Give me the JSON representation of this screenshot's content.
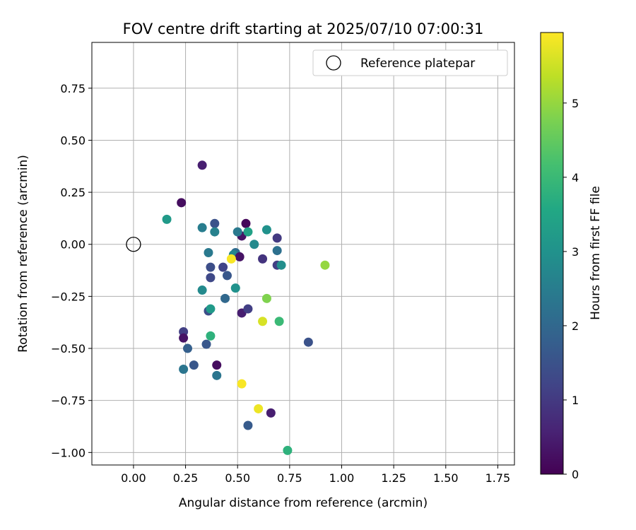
{
  "chart_data": {
    "type": "scatter",
    "title": "FOV centre drift starting at 2025/07/10 07:00:31",
    "xlabel": "Angular distance from reference (arcmin)",
    "ylabel": "Rotation from reference (arcmin)",
    "xlim": [
      -0.2,
      1.83
    ],
    "ylim": [
      -1.06,
      0.97
    ],
    "xticks": [
      0.0,
      0.25,
      0.5,
      0.75,
      1.0,
      1.25,
      1.5,
      1.75
    ],
    "xtick_labels": [
      "0.00",
      "0.25",
      "0.50",
      "0.75",
      "1.00",
      "1.25",
      "1.50",
      "1.75"
    ],
    "yticks": [
      -1.0,
      -0.75,
      -0.5,
      -0.25,
      0.0,
      0.25,
      0.5,
      0.75
    ],
    "ytick_labels": [
      "−1.00",
      "−0.75",
      "−0.50",
      "−0.25",
      "0.00",
      "0.25",
      "0.50",
      "0.75"
    ],
    "grid": true,
    "legend": {
      "placement": "top-right",
      "entries": [
        "Reference platepar"
      ]
    },
    "colorbar": {
      "label": "Hours from first FF file",
      "range": [
        0,
        5.95
      ],
      "colormap": "viridis",
      "ticks": [
        0,
        1,
        2,
        3,
        4,
        5
      ],
      "tick_labels": [
        "0",
        "1",
        "2",
        "3",
        "4",
        "5"
      ]
    },
    "reference_point": {
      "x": 0.0,
      "y": 0.0,
      "label": "Reference platepar"
    },
    "points": [
      {
        "x": 0.33,
        "y": 0.38,
        "h": 0.5
      },
      {
        "x": 0.23,
        "y": 0.2,
        "h": 0.2
      },
      {
        "x": 0.16,
        "y": 0.12,
        "h": 3.2
      },
      {
        "x": 0.33,
        "y": 0.08,
        "h": 2.5
      },
      {
        "x": 0.39,
        "y": 0.1,
        "h": 1.5
      },
      {
        "x": 0.39,
        "y": 0.06,
        "h": 2.6
      },
      {
        "x": 0.36,
        "y": -0.04,
        "h": 2.4
      },
      {
        "x": 0.54,
        "y": 0.1,
        "h": 0.1
      },
      {
        "x": 0.52,
        "y": 0.04,
        "h": 0.3
      },
      {
        "x": 0.5,
        "y": 0.06,
        "h": 2.4
      },
      {
        "x": 0.55,
        "y": 0.06,
        "h": 3.4
      },
      {
        "x": 0.64,
        "y": 0.07,
        "h": 3.0
      },
      {
        "x": 0.69,
        "y": 0.03,
        "h": 1.0
      },
      {
        "x": 0.58,
        "y": 0.0,
        "h": 2.8
      },
      {
        "x": 0.49,
        "y": -0.04,
        "h": 2.1
      },
      {
        "x": 0.48,
        "y": -0.05,
        "h": 2.7
      },
      {
        "x": 0.51,
        "y": -0.06,
        "h": 0.3
      },
      {
        "x": 0.47,
        "y": -0.07,
        "h": 5.9
      },
      {
        "x": 0.62,
        "y": -0.07,
        "h": 0.9
      },
      {
        "x": 0.69,
        "y": -0.03,
        "h": 2.2
      },
      {
        "x": 0.69,
        "y": -0.1,
        "h": 1.1
      },
      {
        "x": 0.71,
        "y": -0.1,
        "h": 2.9
      },
      {
        "x": 0.92,
        "y": -0.1,
        "h": 5.0
      },
      {
        "x": 0.37,
        "y": -0.11,
        "h": 1.4
      },
      {
        "x": 0.43,
        "y": -0.11,
        "h": 1.2
      },
      {
        "x": 0.37,
        "y": -0.16,
        "h": 1.3
      },
      {
        "x": 0.45,
        "y": -0.15,
        "h": 1.6
      },
      {
        "x": 0.33,
        "y": -0.22,
        "h": 2.8
      },
      {
        "x": 0.49,
        "y": -0.21,
        "h": 3.0
      },
      {
        "x": 0.44,
        "y": -0.26,
        "h": 2.0
      },
      {
        "x": 0.64,
        "y": -0.26,
        "h": 4.8
      },
      {
        "x": 0.36,
        "y": -0.32,
        "h": 1.4
      },
      {
        "x": 0.37,
        "y": -0.31,
        "h": 3.2
      },
      {
        "x": 0.52,
        "y": -0.33,
        "h": 0.5
      },
      {
        "x": 0.55,
        "y": -0.31,
        "h": 1.1
      },
      {
        "x": 0.62,
        "y": -0.37,
        "h": 5.6
      },
      {
        "x": 0.7,
        "y": -0.37,
        "h": 4.0
      },
      {
        "x": 0.24,
        "y": -0.42,
        "h": 1.1
      },
      {
        "x": 0.24,
        "y": -0.45,
        "h": 0.3
      },
      {
        "x": 0.37,
        "y": -0.44,
        "h": 3.8
      },
      {
        "x": 0.26,
        "y": -0.5,
        "h": 1.8
      },
      {
        "x": 0.35,
        "y": -0.48,
        "h": 1.6
      },
      {
        "x": 0.84,
        "y": -0.47,
        "h": 1.5
      },
      {
        "x": 0.24,
        "y": -0.6,
        "h": 2.3
      },
      {
        "x": 0.29,
        "y": -0.58,
        "h": 1.6
      },
      {
        "x": 0.4,
        "y": -0.58,
        "h": 0.2
      },
      {
        "x": 0.4,
        "y": -0.63,
        "h": 2.3
      },
      {
        "x": 0.52,
        "y": -0.67,
        "h": 5.9
      },
      {
        "x": 0.6,
        "y": -0.79,
        "h": 5.8
      },
      {
        "x": 0.66,
        "y": -0.81,
        "h": 0.5
      },
      {
        "x": 0.55,
        "y": -0.87,
        "h": 1.7
      },
      {
        "x": 0.74,
        "y": -0.99,
        "h": 3.8
      }
    ]
  }
}
